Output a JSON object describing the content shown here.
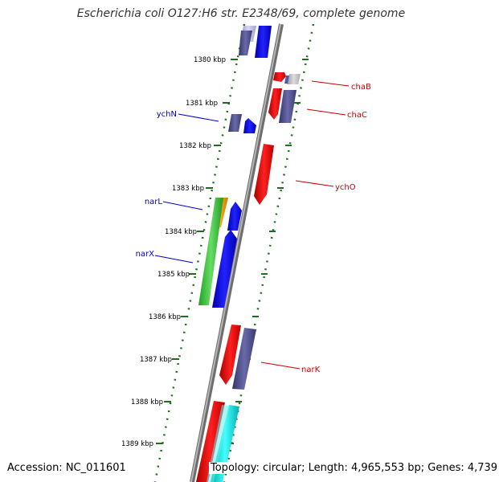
{
  "title": "Escherichia coli O127:H6 str. E2348/69, complete genome",
  "footer": {
    "accession": "Accession: NC_011601",
    "topology": "Topology: circular; Length: 4,965,553 bp; Genes: 4,739"
  },
  "tick_labels": [
    "1380 kbp",
    "1381 kbp",
    "1382 kbp",
    "1383 kbp",
    "1384 kbp",
    "1385 kbp",
    "1386 kbp",
    "1387 kbp",
    "1388 kbp",
    "1389 kbp"
  ],
  "genes": {
    "left": [
      "ychN",
      "narL",
      "narX"
    ],
    "right": [
      "chaB",
      "chaC",
      "ychO",
      "narK"
    ]
  },
  "colors": {
    "backbone": "#8c8c8c",
    "ticks": "#1f6e1f",
    "forward_label": "#0000cc",
    "reverse_label": "#cc0000",
    "red": "#ee0000",
    "blue": "#0000ee",
    "slate": "#4a4a8a",
    "green": "#33bb33",
    "orange": "#f08c00",
    "cyan": "#11dddd",
    "gray": "#bbbbbb"
  }
}
